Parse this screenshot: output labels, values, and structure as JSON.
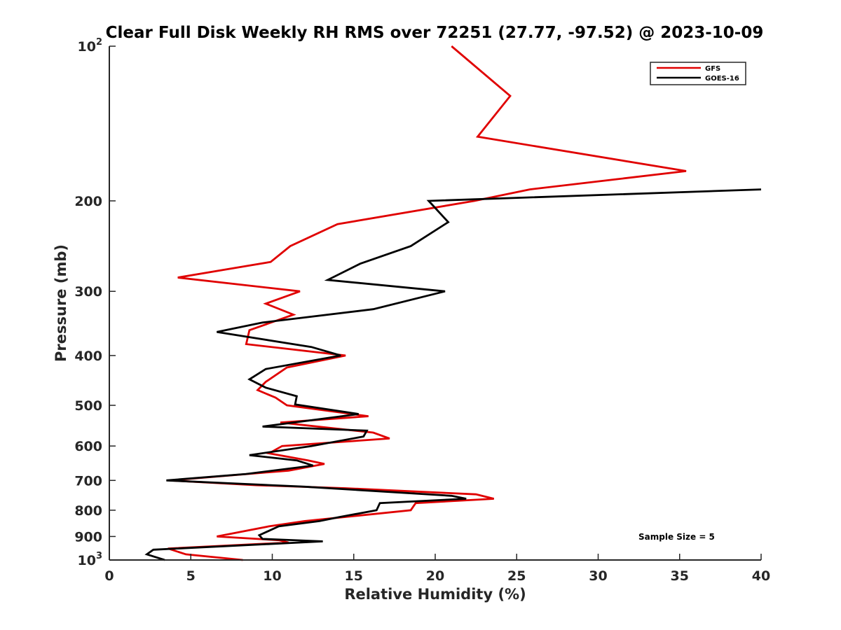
{
  "chart_data": {
    "type": "line",
    "title": "Clear Full Disk Weekly RH RMS over 72251 (27.77, -97.52) @ 2023-10-09",
    "xlabel": "Relative Humidity (%)",
    "ylabel": "Pressure (mb)",
    "xlim": [
      0,
      40
    ],
    "ylim": [
      100,
      1000
    ],
    "y_scale": "log",
    "y_reversed": true,
    "grid": false,
    "legend_position": "top-right",
    "annotation": "Sample Size = 5",
    "x_ticks": [
      "0",
      "5",
      "10",
      "15",
      "20",
      "25",
      "30",
      "35",
      "40"
    ],
    "y_ticks": [
      {
        "value": 100,
        "base": "10",
        "exp": "2"
      },
      {
        "value": 200,
        "base": "200",
        "exp": ""
      },
      {
        "value": 300,
        "base": "300",
        "exp": ""
      },
      {
        "value": 400,
        "base": "400",
        "exp": ""
      },
      {
        "value": 500,
        "base": "500",
        "exp": ""
      },
      {
        "value": 600,
        "base": "600",
        "exp": ""
      },
      {
        "value": 700,
        "base": "700",
        "exp": ""
      },
      {
        "value": 800,
        "base": "800",
        "exp": ""
      },
      {
        "value": 900,
        "base": "900",
        "exp": ""
      },
      {
        "value": 1000,
        "base": "10",
        "exp": "3"
      }
    ],
    "series": [
      {
        "name": "GFS",
        "color": "#e00000",
        "points": [
          [
            21.0,
            100
          ],
          [
            24.6,
            125
          ],
          [
            22.6,
            150
          ],
          [
            35.4,
            175
          ],
          [
            25.8,
            190
          ],
          [
            22.4,
            200
          ],
          [
            14.0,
            222
          ],
          [
            11.1,
            245
          ],
          [
            9.9,
            263
          ],
          [
            4.2,
            282
          ],
          [
            11.7,
            300
          ],
          [
            9.6,
            317
          ],
          [
            11.3,
            333
          ],
          [
            8.6,
            357
          ],
          [
            8.4,
            380
          ],
          [
            14.5,
            400
          ],
          [
            10.9,
            422
          ],
          [
            9.6,
            450
          ],
          [
            9.1,
            467
          ],
          [
            10.2,
            483
          ],
          [
            10.9,
            500
          ],
          [
            15.9,
            525
          ],
          [
            10.5,
            540
          ],
          [
            16.2,
            565
          ],
          [
            17.2,
            580
          ],
          [
            10.6,
            600
          ],
          [
            9.8,
            620
          ],
          [
            12.2,
            640
          ],
          [
            13.2,
            650
          ],
          [
            11.0,
            670
          ],
          [
            3.7,
            700
          ],
          [
            9.0,
            715
          ],
          [
            14.5,
            725
          ],
          [
            22.5,
            745
          ],
          [
            23.6,
            760
          ],
          [
            18.8,
            775
          ],
          [
            18.5,
            800
          ],
          [
            12.0,
            840
          ],
          [
            9.8,
            860
          ],
          [
            6.6,
            900
          ],
          [
            10.4,
            915
          ],
          [
            11.0,
            925
          ],
          [
            3.6,
            950
          ],
          [
            4.7,
            975
          ],
          [
            8.2,
            1000
          ]
        ]
      },
      {
        "name": "GOES-16",
        "color": "#000000",
        "points": [
          [
            40.0,
            190
          ],
          [
            19.6,
            200
          ],
          [
            20.8,
            220
          ],
          [
            18.5,
            245
          ],
          [
            15.4,
            265
          ],
          [
            13.4,
            285
          ],
          [
            20.6,
            300
          ],
          [
            16.2,
            325
          ],
          [
            9.4,
            345
          ],
          [
            6.6,
            360
          ],
          [
            12.4,
            385
          ],
          [
            14.2,
            400
          ],
          [
            9.6,
            425
          ],
          [
            8.6,
            445
          ],
          [
            9.6,
            462
          ],
          [
            11.5,
            480
          ],
          [
            11.4,
            498
          ],
          [
            15.3,
            520
          ],
          [
            9.4,
            550
          ],
          [
            15.8,
            560
          ],
          [
            15.6,
            575
          ],
          [
            12.4,
            600
          ],
          [
            8.6,
            625
          ],
          [
            11.5,
            640
          ],
          [
            12.5,
            655
          ],
          [
            8.4,
            680
          ],
          [
            3.5,
            700
          ],
          [
            12.0,
            720
          ],
          [
            21.0,
            750
          ],
          [
            21.9,
            760
          ],
          [
            16.6,
            775
          ],
          [
            16.4,
            800
          ],
          [
            14.1,
            825
          ],
          [
            12.9,
            840
          ],
          [
            10.4,
            860
          ],
          [
            9.2,
            895
          ],
          [
            9.4,
            910
          ],
          [
            13.1,
            920
          ],
          [
            2.7,
            955
          ],
          [
            2.3,
            975
          ],
          [
            3.4,
            1000
          ]
        ]
      }
    ]
  }
}
